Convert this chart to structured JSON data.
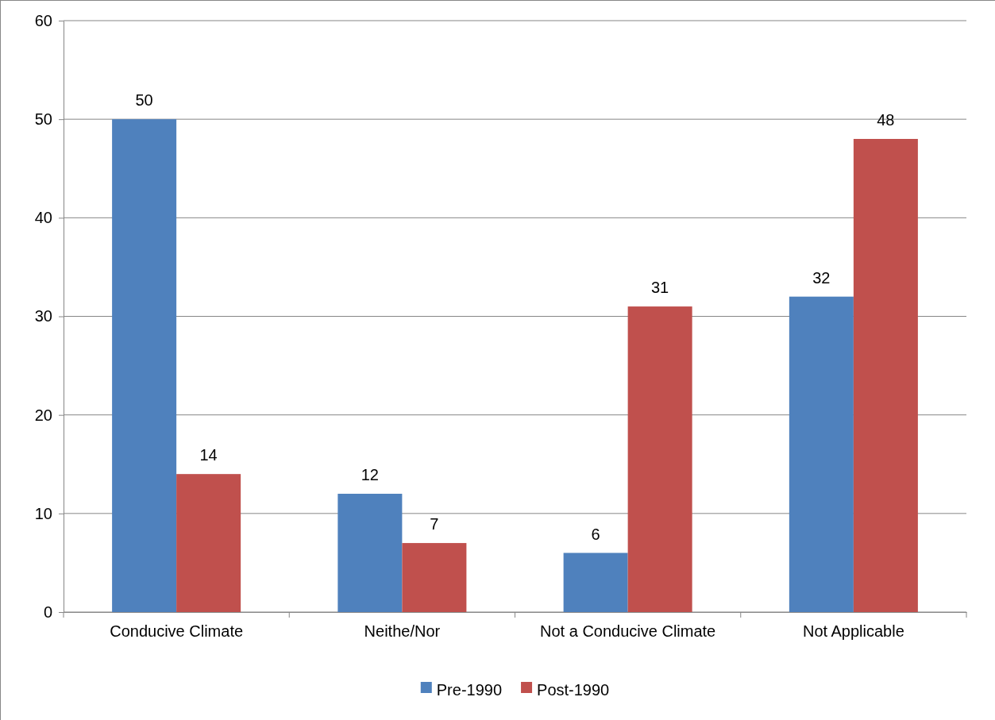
{
  "chart_data": {
    "type": "bar",
    "categories": [
      "Conducive Climate",
      "Neithe/Nor",
      "Not a Conducive Climate",
      "Not Applicable"
    ],
    "series": [
      {
        "name": "Pre-1990",
        "color": "#4f81bd",
        "values": [
          50,
          12,
          6,
          32
        ]
      },
      {
        "name": "Post-1990",
        "color": "#c0504d",
        "values": [
          14,
          7,
          31,
          48
        ]
      }
    ],
    "ylim": [
      0,
      60
    ],
    "yticks": [
      0,
      10,
      20,
      30,
      40,
      50,
      60
    ],
    "grid": "y",
    "legend": "bottom",
    "data_labels": true
  }
}
